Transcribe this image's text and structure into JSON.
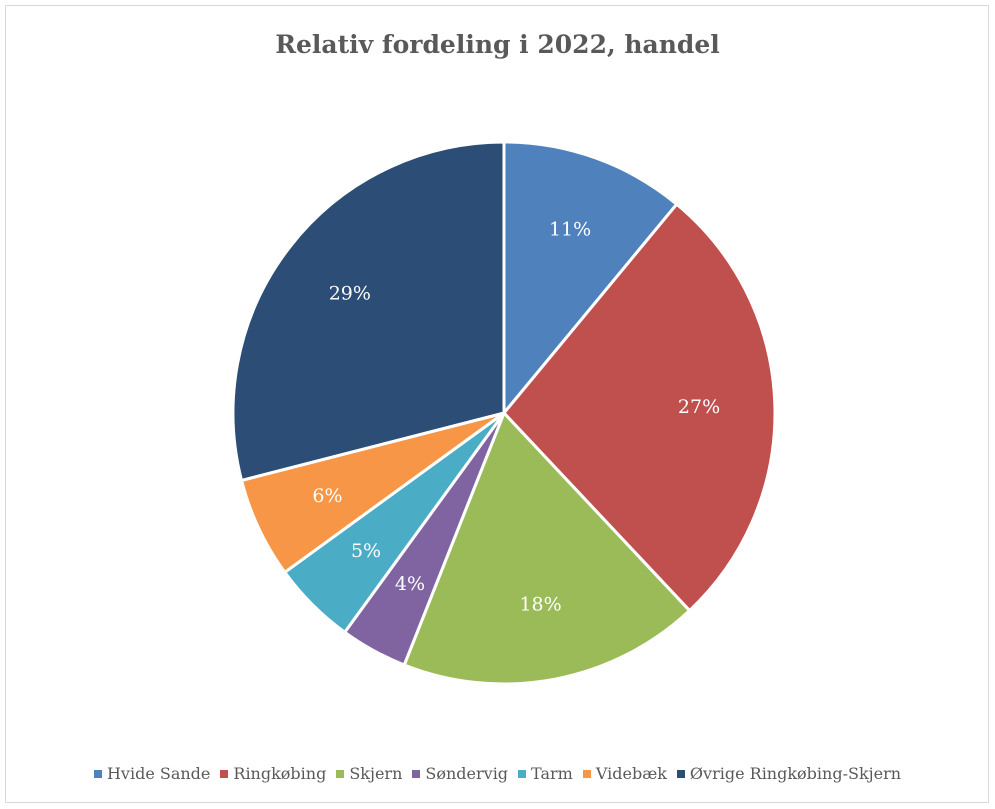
{
  "chart_data": {
    "type": "pie",
    "title": "Relativ fordeling i 2022, handel",
    "categories": [
      "Hvide Sande",
      "Ringkøbing",
      "Skjern",
      "Søndervig",
      "Tarm",
      "Videbæk",
      "Øvrige Ringkøbing-Skjern"
    ],
    "values": [
      11,
      27,
      18,
      4,
      5,
      6,
      29
    ],
    "labels": [
      "11%",
      "27%",
      "18%",
      "4%",
      "5%",
      "6%",
      "29%"
    ],
    "colors": [
      "#4f81bd",
      "#c0504d",
      "#9bbb59",
      "#8064a2",
      "#4bacc6",
      "#f79646",
      "#2c4d75"
    ],
    "legend_position": "bottom"
  }
}
